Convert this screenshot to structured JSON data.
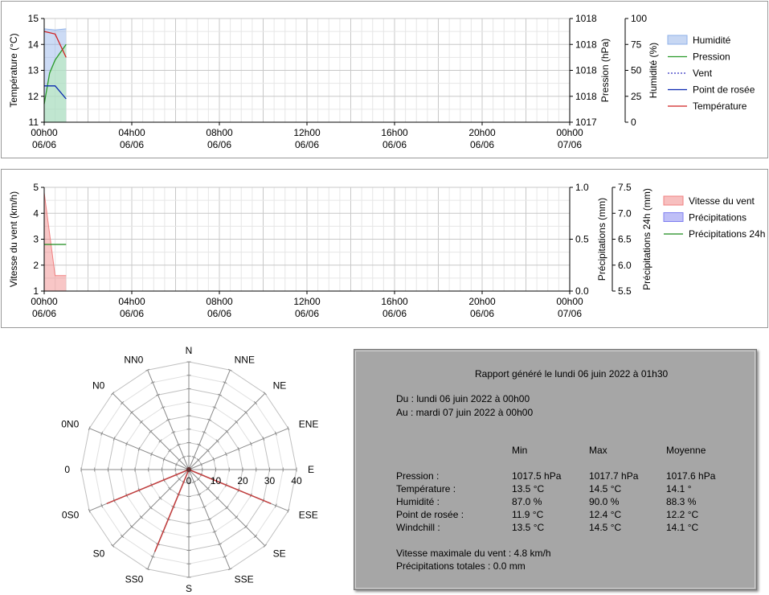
{
  "chart_data": [
    {
      "type": "line",
      "x_ticks": [
        {
          "time": "00h00",
          "date": "06/06"
        },
        {
          "time": "04h00",
          "date": "06/06"
        },
        {
          "time": "08h00",
          "date": "06/06"
        },
        {
          "time": "12h00",
          "date": "06/06"
        },
        {
          "time": "16h00",
          "date": "06/06"
        },
        {
          "time": "20h00",
          "date": "06/06"
        },
        {
          "time": "00h00",
          "date": "07/06"
        }
      ],
      "x_hours": [
        0,
        1
      ],
      "y_axes": [
        {
          "label": "Température (°C)",
          "range": [
            11,
            15
          ],
          "ticks": [
            "11",
            "12",
            "13",
            "14",
            "15"
          ]
        },
        {
          "label": "Pression (hPa)",
          "range": [
            1017.4,
            1017.8
          ],
          "ticks": [
            "1017",
            "1018",
            "1018",
            "1018",
            "1018"
          ]
        },
        {
          "label": "Humidité (%)",
          "range": [
            0,
            100
          ],
          "ticks": [
            "0",
            "25",
            "50",
            "75",
            "100"
          ]
        }
      ],
      "legend": [
        "Humidité",
        "Pression",
        "Vent",
        "Point de rosée",
        "Température"
      ],
      "series": [
        {
          "name": "Humidité",
          "kind": "area",
          "axis": 2,
          "x": [
            0,
            0.5,
            1
          ],
          "values": [
            90,
            89,
            90
          ],
          "color": "#8fb0e8"
        },
        {
          "name": "Pression",
          "kind": "area-line",
          "axis": 1,
          "x": [
            0,
            0.25,
            0.5,
            0.75,
            1
          ],
          "values": [
            1017.47,
            1017.59,
            1017.64,
            1017.67,
            1017.7
          ],
          "color": "#2a9a2a"
        },
        {
          "name": "Vent",
          "kind": "dotted",
          "axis": 0,
          "x": [],
          "values": [],
          "color": "#3030c0"
        },
        {
          "name": "Point de rosée",
          "kind": "line",
          "axis": 0,
          "x": [
            0,
            0.5,
            1
          ],
          "values": [
            12.4,
            12.4,
            11.9
          ],
          "color": "#0a28b0"
        },
        {
          "name": "Température",
          "kind": "line",
          "axis": 0,
          "x": [
            0,
            0.5,
            1
          ],
          "values": [
            14.5,
            14.4,
            13.5
          ],
          "color": "#d02020"
        }
      ]
    },
    {
      "type": "area",
      "x_ticks": [
        {
          "time": "00h00",
          "date": "06/06"
        },
        {
          "time": "04h00",
          "date": "06/06"
        },
        {
          "time": "08h00",
          "date": "06/06"
        },
        {
          "time": "12h00",
          "date": "06/06"
        },
        {
          "time": "16h00",
          "date": "06/06"
        },
        {
          "time": "20h00",
          "date": "06/06"
        },
        {
          "time": "00h00",
          "date": "07/06"
        }
      ],
      "y_axes": [
        {
          "label": "Vitesse du vent (km/h)",
          "range": [
            1,
            5
          ],
          "ticks": [
            "1",
            "2",
            "3",
            "4",
            "5"
          ]
        },
        {
          "label": "Précipitations (mm)",
          "range": [
            0,
            1
          ],
          "ticks": [
            "0.0",
            "0.5",
            "1.0"
          ]
        },
        {
          "label": "Précipitations 24h (mm)",
          "range": [
            5.5,
            7.5
          ],
          "ticks": [
            "5.5",
            "6.0",
            "6.5",
            "7.0",
            "7.5"
          ]
        }
      ],
      "legend": [
        "Vitesse du vent",
        "Précipitations",
        "Précipitations 24h"
      ],
      "series": [
        {
          "name": "Vitesse du vent",
          "kind": "area",
          "axis": 0,
          "x": [
            0,
            0.5,
            0.5,
            1
          ],
          "values": [
            4.8,
            1.6,
            1.6,
            1.6
          ],
          "color": "#f08080"
        },
        {
          "name": "Précipitations",
          "kind": "area",
          "axis": 1,
          "x": [],
          "values": [],
          "color": "#8080f0"
        },
        {
          "name": "Précipitations 24h",
          "kind": "line",
          "axis": 0,
          "x": [
            0,
            1
          ],
          "values": [
            2.8,
            2.8
          ],
          "color": "#1a8a1a"
        }
      ]
    },
    {
      "type": "radar",
      "directions": [
        "N",
        "NNE",
        "NE",
        "ENE",
        "E",
        "ESE",
        "SE",
        "SSE",
        "S",
        "SS0",
        "S0",
        "0S0",
        "0",
        "0N0",
        "N0",
        "NN0"
      ],
      "rings": [
        0,
        10,
        20,
        30,
        40
      ],
      "ring_labels": [
        "0",
        "10",
        "20",
        "30",
        "40"
      ],
      "max": 40,
      "values": [
        0,
        0,
        0,
        0,
        0,
        33,
        0,
        0,
        0,
        33,
        0,
        33,
        0,
        0,
        0,
        0
      ],
      "color": "#c04040"
    }
  ],
  "report": {
    "title": "Rapport généré le lundi 06 juin 2022 à 01h30",
    "from": "Du : lundi 06 juin 2022 à 00h00",
    "to": "Au : mardi 07 juin 2022 à 00h00",
    "headers": [
      "Min",
      "Max",
      "Moyenne"
    ],
    "rows": [
      {
        "label": "Pression :",
        "min": "1017.5 hPa",
        "max": "1017.7 hPa",
        "avg": "1017.6 hPa"
      },
      {
        "label": "Température :",
        "min": "13.5 °C",
        "max": "14.5 °C",
        "avg": "14.1 °"
      },
      {
        "label": "Humidité :",
        "min": "87.0 %",
        "max": "90.0 %",
        "avg": "88.3 %"
      },
      {
        "label": "Point de rosée :",
        "min": "11.9 °C",
        "max": "12.4 °C",
        "avg": "12.2 °C"
      },
      {
        "label": "Windchill :",
        "min": "13.5 °C",
        "max": "14.5 °C",
        "avg": "14.1 °C"
      }
    ],
    "max_wind": "Vitesse maximale du vent : 4.8 km/h",
    "total_rain": "Précipitations totales : 0.0 mm"
  }
}
